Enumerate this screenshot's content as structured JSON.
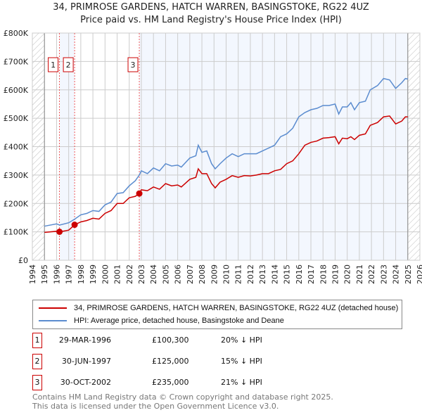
{
  "chart_data": {
    "type": "line",
    "title": "34, PRIMROSE GARDENS, HATCH WARREN, BASINGSTOKE, RG22 4UZ",
    "subtitle": "Price paid vs. HM Land Registry's House Price Index (HPI)",
    "xlim": [
      1994,
      2026
    ],
    "ylim": [
      0,
      800000
    ],
    "y_ticks": [
      0,
      100000,
      200000,
      300000,
      400000,
      500000,
      600000,
      700000,
      800000
    ],
    "y_tick_labels": [
      "£0",
      "£100K",
      "£200K",
      "£300K",
      "£400K",
      "£500K",
      "£600K",
      "£700K",
      "£800K"
    ],
    "x_ticks": [
      "1994",
      "1995",
      "1996",
      "1997",
      "1998",
      "1999",
      "2000",
      "2001",
      "2002",
      "2003",
      "2004",
      "2005",
      "2006",
      "2007",
      "2008",
      "2009",
      "2010",
      "2011",
      "2012",
      "2013",
      "2014",
      "2015",
      "2016",
      "2017",
      "2018",
      "2019",
      "2020",
      "2021",
      "2022",
      "2023",
      "2024",
      "2025",
      "2026"
    ],
    "grid": true,
    "series": [
      {
        "name": "34, PRIMROSE GARDENS, HATCH WARREN, BASINGSTOKE, RG22 4UZ (detached house)",
        "color": "#cc0000",
        "x": [
          1995,
          1996,
          1996.25,
          1997,
          1997.5,
          1998,
          1998.5,
          1999,
          1999.5,
          2000,
          2000.5,
          2001,
          2001.5,
          2002,
          2002.5,
          2002.83,
          2003,
          2003.5,
          2004,
          2004.5,
          2005,
          2005.5,
          2006,
          2006.3,
          2007,
          2007.5,
          2007.7,
          2008,
          2008.4,
          2008.8,
          2009.1,
          2009.5,
          2010,
          2010.5,
          2011,
          2011.5,
          2012,
          2012.5,
          2013,
          2013.5,
          2014,
          2014.5,
          2015,
          2015.5,
          2016,
          2016.5,
          2017,
          2017.5,
          2018,
          2018.5,
          2019,
          2019.3,
          2019.6,
          2020,
          2020.3,
          2020.6,
          2021,
          2021.5,
          2021.9,
          2022.5,
          2023,
          2023.5,
          2024,
          2024.5,
          2024.8,
          2025
        ],
        "y": [
          98,
          102,
          100,
          106,
          125,
          135,
          140,
          148,
          145,
          165,
          175,
          200,
          200,
          220,
          225,
          235,
          248,
          245,
          258,
          250,
          270,
          262,
          265,
          258,
          285,
          292,
          322,
          305,
          305,
          270,
          255,
          275,
          285,
          298,
          292,
          298,
          297,
          300,
          305,
          305,
          315,
          320,
          340,
          350,
          375,
          405,
          415,
          420,
          430,
          432,
          435,
          410,
          430,
          428,
          435,
          425,
          440,
          445,
          475,
          485,
          505,
          508,
          480,
          490,
          505,
          505
        ]
      },
      {
        "name": "HPI: Average price, detached house, Basingstoke and Deane",
        "color": "#5b8ccf",
        "x": [
          1995,
          1996,
          1996.25,
          1997,
          1997.5,
          1998,
          1998.5,
          1999,
          1999.5,
          2000,
          2000.5,
          2001,
          2001.5,
          2002,
          2002.5,
          2002.83,
          2003,
          2003.5,
          2004,
          2004.5,
          2005,
          2005.5,
          2006,
          2006.3,
          2007,
          2007.5,
          2007.7,
          2008,
          2008.4,
          2008.8,
          2009.1,
          2009.5,
          2010,
          2010.5,
          2011,
          2011.5,
          2012,
          2012.5,
          2013,
          2013.5,
          2014,
          2014.5,
          2015,
          2015.5,
          2016,
          2016.5,
          2017,
          2017.5,
          2018,
          2018.5,
          2019,
          2019.3,
          2019.6,
          2020,
          2020.3,
          2020.6,
          2021,
          2021.5,
          2021.9,
          2022.5,
          2023,
          2023.5,
          2024,
          2024.5,
          2024.8,
          2025
        ],
        "y": [
          120,
          128,
          124,
          132,
          145,
          160,
          165,
          175,
          172,
          195,
          205,
          235,
          238,
          262,
          280,
          300,
          315,
          305,
          325,
          315,
          340,
          332,
          335,
          328,
          360,
          368,
          405,
          380,
          385,
          340,
          322,
          340,
          360,
          375,
          365,
          375,
          375,
          375,
          385,
          395,
          405,
          435,
          445,
          465,
          505,
          520,
          530,
          535,
          545,
          545,
          550,
          515,
          540,
          540,
          555,
          530,
          555,
          560,
          600,
          615,
          640,
          635,
          605,
          625,
          640,
          638
        ]
      }
    ],
    "sales": [
      {
        "label": "1",
        "x": 1996.24,
        "y": 100300
      },
      {
        "label": "2",
        "x": 1997.49,
        "y": 125000
      },
      {
        "label": "3",
        "x": 2002.83,
        "y": 235000
      }
    ],
    "legend_position": "below"
  },
  "transactions": [
    {
      "num": "1",
      "date": "29-MAR-1996",
      "price": "£100,300",
      "hpi": "20% ↓ HPI"
    },
    {
      "num": "2",
      "date": "30-JUN-1997",
      "price": "£125,000",
      "hpi": "15% ↓ HPI"
    },
    {
      "num": "3",
      "date": "30-OCT-2002",
      "price": "£235,000",
      "hpi": "21% ↓ HPI"
    }
  ],
  "footer": {
    "line1": "Contains HM Land Registry data © Crown copyright and database right 2025.",
    "line2": "This data is licensed under the Open Government Licence v3.0."
  }
}
